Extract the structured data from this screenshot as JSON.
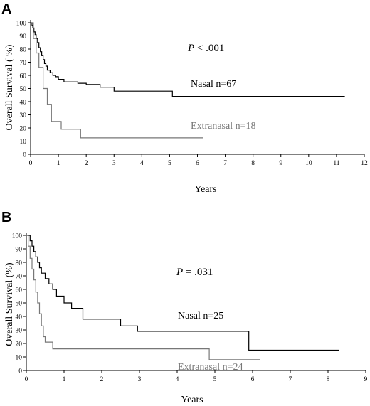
{
  "chart_data": [
    {
      "type": "line",
      "panel_label": "A",
      "xlabel": "Years",
      "ylabel": "Overall Survival ( %)",
      "xlim": [
        0,
        12
      ],
      "ylim": [
        0,
        100
      ],
      "x_ticks": [
        0,
        1,
        2,
        3,
        4,
        5,
        6,
        7,
        8,
        9,
        10,
        11,
        12
      ],
      "y_ticks": [
        0,
        10,
        20,
        30,
        40,
        50,
        60,
        70,
        80,
        90,
        100
      ],
      "p_label": "P",
      "p_text": " < .001",
      "series": [
        {
          "name": "Nasal n=67",
          "color": "#000000",
          "x": [
            0,
            0.05,
            0.08,
            0.12,
            0.16,
            0.2,
            0.25,
            0.3,
            0.35,
            0.4,
            0.45,
            0.5,
            0.55,
            0.6,
            0.7,
            0.8,
            0.9,
            1.0,
            1.2,
            1.5,
            1.7,
            2.0,
            2.5,
            3.0,
            5.1,
            11.3
          ],
          "y": [
            100,
            98,
            96,
            93,
            91,
            88,
            85,
            81,
            78,
            75,
            72,
            69,
            67,
            64,
            62,
            60,
            59,
            57,
            55,
            55,
            54,
            53,
            51,
            48,
            44,
            44
          ]
        },
        {
          "name": "Extranasal n=18",
          "color": "#777777",
          "x": [
            0,
            0.1,
            0.2,
            0.3,
            0.45,
            0.6,
            0.75,
            1.1,
            1.8,
            6.2
          ],
          "y": [
            100,
            88,
            77,
            66,
            50,
            38,
            25,
            19,
            12.5,
            12.5
          ]
        }
      ]
    },
    {
      "type": "line",
      "panel_label": "B",
      "xlabel": "Years",
      "ylabel": "Overall Survival (%)",
      "xlim": [
        0,
        9
      ],
      "ylim": [
        0,
        100
      ],
      "x_ticks": [
        0,
        1,
        2,
        3,
        4,
        5,
        6,
        7,
        8,
        9
      ],
      "y_ticks": [
        0,
        10,
        20,
        30,
        40,
        50,
        60,
        70,
        80,
        90,
        100
      ],
      "p_label": "P",
      "p_text": " = .031",
      "series": [
        {
          "name": "Nasal n=25",
          "color": "#000000",
          "x": [
            0,
            0.1,
            0.15,
            0.2,
            0.25,
            0.3,
            0.35,
            0.4,
            0.5,
            0.6,
            0.7,
            0.8,
            1.0,
            1.2,
            1.5,
            2.5,
            2.95,
            5.9,
            8.3
          ],
          "y": [
            100,
            96,
            92,
            88,
            84,
            80,
            76,
            72,
            68,
            64,
            60,
            55,
            50,
            46,
            38,
            33,
            29,
            15,
            15
          ]
        },
        {
          "name": "Extranasal n=24",
          "color": "#777777",
          "x": [
            0,
            0.05,
            0.1,
            0.15,
            0.2,
            0.25,
            0.3,
            0.35,
            0.4,
            0.45,
            0.5,
            0.7,
            4.85,
            6.2
          ],
          "y": [
            100,
            92,
            83,
            75,
            67,
            58,
            50,
            42,
            33,
            25,
            21,
            16,
            8,
            8
          ]
        }
      ]
    }
  ]
}
